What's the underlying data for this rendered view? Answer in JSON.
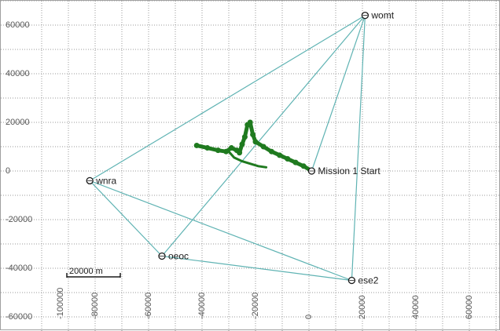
{
  "chart_data": {
    "type": "scatter",
    "xlim": [
      -100000,
      75000
    ],
    "ylim": [
      -63000,
      66000
    ],
    "grid": true,
    "x_ticks": [
      -80000,
      -60000,
      -40000,
      -20000,
      0,
      20000,
      40000,
      60000
    ],
    "x_tick_labels": [
      "-80000",
      "-60000",
      "-40000",
      "-20000",
      "0",
      "20000",
      "40000",
      "60000"
    ],
    "y_ticks": [
      60000,
      40000,
      20000,
      0,
      -20000,
      -40000,
      -60000
    ],
    "y_tick_labels": [
      "60000",
      "40000",
      "20000",
      "0",
      "-20000",
      "-40000",
      "-60000"
    ],
    "extra_x_label": "-100000",
    "stations": [
      {
        "name": "womt",
        "x": 21000,
        "y": 64000
      },
      {
        "name": "wnra",
        "x": -82000,
        "y": -4000
      },
      {
        "name": "oeoc",
        "x": -55000,
        "y": -35000
      },
      {
        "name": "ese2",
        "x": 16000,
        "y": -45000
      },
      {
        "name": "Mission 1 Start",
        "x": 1000,
        "y": 0
      }
    ],
    "baselines": [
      [
        "wnra",
        "womt"
      ],
      [
        "oeoc",
        "womt"
      ],
      [
        "ese2",
        "womt"
      ],
      [
        "Mission 1 Start",
        "womt"
      ],
      [
        "wnra",
        "oeoc"
      ],
      [
        "wnra",
        "ese2"
      ],
      [
        "oeoc",
        "ese2"
      ]
    ],
    "track": {
      "color": "#1f7a1f",
      "baseline_color": "#5fb3b3",
      "points": [
        [
          -42000,
          10500
        ],
        [
          -38000,
          9500
        ],
        [
          -34000,
          8500
        ],
        [
          -31000,
          8000
        ],
        [
          -29000,
          9500
        ],
        [
          -27000,
          8500
        ],
        [
          -26000,
          7500
        ],
        [
          -25000,
          11000
        ],
        [
          -24000,
          14000
        ],
        [
          -23000,
          19000
        ],
        [
          -22000,
          20000
        ],
        [
          -21000,
          15000
        ],
        [
          -20000,
          12000
        ],
        [
          -17000,
          10000
        ],
        [
          -14000,
          8000
        ],
        [
          -11000,
          6500
        ],
        [
          -8000,
          5000
        ],
        [
          -5000,
          3500
        ],
        [
          -2000,
          2000
        ],
        [
          1000,
          0
        ]
      ],
      "loop_points": [
        [
          -30000,
          8000
        ],
        [
          -28000,
          5500
        ],
        [
          -25000,
          4000
        ],
        [
          -22000,
          3000
        ],
        [
          -19000,
          2000
        ],
        [
          -16000,
          1500
        ]
      ]
    },
    "scale_bar": {
      "label": "20000 m",
      "length": 20000
    }
  }
}
